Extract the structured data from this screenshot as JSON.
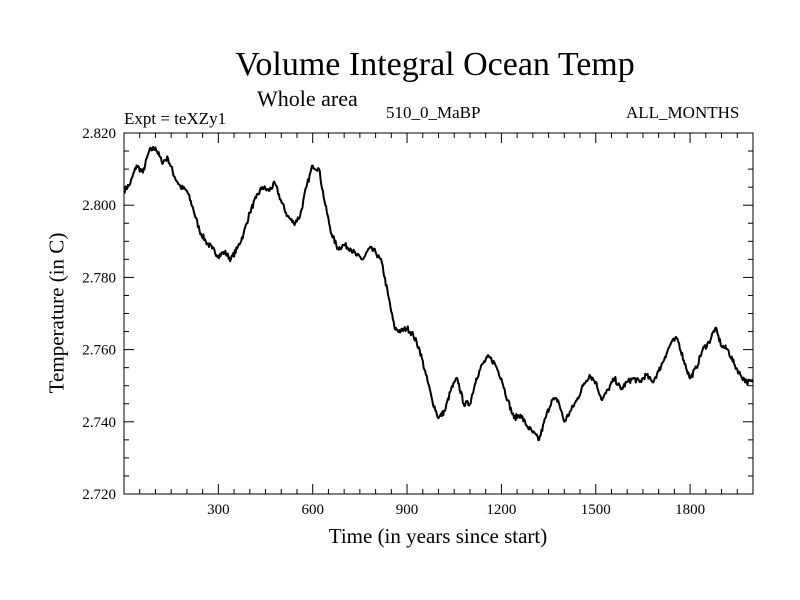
{
  "header": {
    "title": "Volume Integral Ocean Temp",
    "subtitle": "Whole area",
    "experiment": "Expt = teXZy1",
    "case_label": "510_0_MaBP",
    "months_label": "ALL_MONTHS"
  },
  "chart_data": {
    "type": "line",
    "title": "Volume Integral Ocean Temp",
    "subtitle": "Whole area",
    "xlabel": "Time (in years since start)",
    "ylabel": "Temperature (in C)",
    "xlim": [
      0,
      2000
    ],
    "ylim": [
      2.72,
      2.82
    ],
    "x_ticks": [
      300,
      600,
      900,
      1200,
      1500,
      1800
    ],
    "x_tick_labels": [
      "300",
      "600",
      "900",
      "1200",
      "1500",
      "1800"
    ],
    "y_ticks": [
      2.72,
      2.74,
      2.76,
      2.78,
      2.8,
      2.82
    ],
    "y_tick_labels": [
      "2.720",
      "2.740",
      "2.760",
      "2.780",
      "2.800",
      "2.820"
    ],
    "grid": false,
    "series": [
      {
        "name": "Volume Integral Ocean Temp",
        "x": [
          0,
          20,
          40,
          60,
          80,
          100,
          120,
          140,
          160,
          180,
          200,
          220,
          240,
          260,
          280,
          300,
          320,
          340,
          360,
          380,
          400,
          420,
          440,
          460,
          480,
          500,
          520,
          540,
          560,
          580,
          600,
          620,
          640,
          660,
          680,
          700,
          720,
          740,
          760,
          780,
          800,
          820,
          840,
          860,
          880,
          900,
          920,
          940,
          960,
          980,
          1000,
          1020,
          1040,
          1060,
          1080,
          1100,
          1120,
          1140,
          1160,
          1180,
          1200,
          1220,
          1240,
          1260,
          1280,
          1300,
          1320,
          1340,
          1360,
          1380,
          1400,
          1420,
          1440,
          1460,
          1480,
          1500,
          1520,
          1540,
          1560,
          1580,
          1600,
          1620,
          1640,
          1660,
          1680,
          1700,
          1720,
          1740,
          1760,
          1780,
          1800,
          1820,
          1840,
          1860,
          1880,
          1900,
          1920,
          1940,
          1960,
          1980,
          2000
        ],
        "y": [
          2.804,
          2.806,
          2.811,
          2.809,
          2.815,
          2.816,
          2.812,
          2.813,
          2.808,
          2.805,
          2.804,
          2.799,
          2.793,
          2.79,
          2.788,
          2.786,
          2.787,
          2.785,
          2.788,
          2.792,
          2.798,
          2.802,
          2.805,
          2.804,
          2.806,
          2.801,
          2.797,
          2.795,
          2.797,
          2.805,
          2.811,
          2.81,
          2.8,
          2.792,
          2.788,
          2.789,
          2.788,
          2.786,
          2.785,
          2.788,
          2.787,
          2.784,
          2.775,
          2.766,
          2.765,
          2.766,
          2.764,
          2.76,
          2.753,
          2.746,
          2.741,
          2.743,
          2.749,
          2.752,
          2.745,
          2.745,
          2.752,
          2.756,
          2.758,
          2.756,
          2.752,
          2.746,
          2.741,
          2.742,
          2.739,
          2.737,
          2.735,
          2.741,
          2.746,
          2.746,
          2.74,
          2.743,
          2.746,
          2.75,
          2.753,
          2.751,
          2.746,
          2.749,
          2.752,
          2.749,
          2.751,
          2.752,
          2.751,
          2.753,
          2.751,
          2.754,
          2.758,
          2.762,
          2.763,
          2.757,
          2.752,
          2.755,
          2.76,
          2.762,
          2.766,
          2.761,
          2.76,
          2.756,
          2.753,
          2.751,
          2.751
        ]
      }
    ]
  }
}
